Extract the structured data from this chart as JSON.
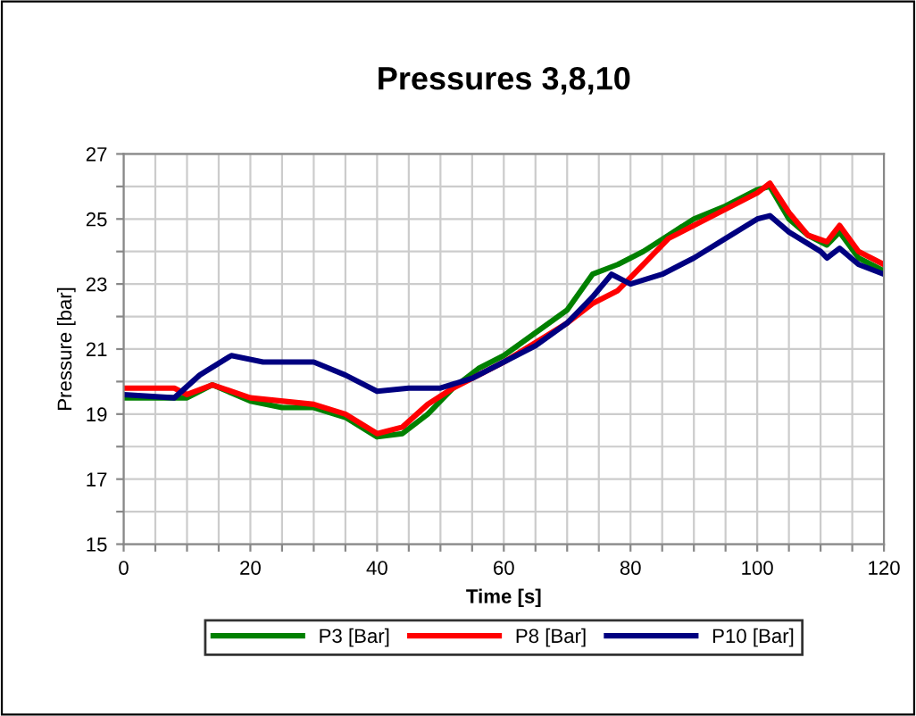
{
  "chart_data": {
    "type": "line",
    "title": "Pressures 3,8,10",
    "xlabel": "Time [s]",
    "ylabel": "Pressure [bar]",
    "xlim": [
      0,
      120
    ],
    "ylim": [
      15,
      27
    ],
    "xticks": [
      0,
      {
        "value": 5,
        "label": null
      },
      {
        "value": 10,
        "label": null
      },
      {
        "value": 15,
        "label": null
      },
      20,
      {
        "value": 25,
        "label": null
      },
      {
        "value": 30,
        "label": null
      },
      {
        "value": 35,
        "label": null
      },
      40,
      {
        "value": 45,
        "label": null
      },
      {
        "value": 50,
        "label": null
      },
      {
        "value": 55,
        "label": null
      },
      60,
      {
        "value": 65,
        "label": null
      },
      {
        "value": 70,
        "label": null
      },
      {
        "value": 75,
        "label": null
      },
      80,
      {
        "value": 85,
        "label": null
      },
      {
        "value": 90,
        "label": null
      },
      {
        "value": 95,
        "label": null
      },
      100,
      {
        "value": 105,
        "label": null
      },
      {
        "value": 110,
        "label": null
      },
      {
        "value": 115,
        "label": null
      },
      120
    ],
    "yticks": [
      15,
      {
        "value": 16,
        "label": null
      },
      17,
      {
        "value": 18,
        "label": null
      },
      19,
      {
        "value": 20,
        "label": null
      },
      21,
      {
        "value": 22,
        "label": null
      },
      23,
      {
        "value": 24,
        "label": null
      },
      25,
      {
        "value": 26,
        "label": null
      },
      27
    ],
    "grid": true,
    "legend": "bottom",
    "marker": "none",
    "line_style": "solid",
    "series": [
      {
        "name": "P3 [Bar]",
        "color": "#008000",
        "x": [
          0,
          8,
          10,
          14,
          20,
          25,
          30,
          35,
          40,
          44,
          48,
          52,
          56,
          60,
          65,
          70,
          74,
          78,
          82,
          86,
          90,
          95,
          100,
          102,
          105,
          108,
          111,
          113,
          116,
          120
        ],
        "values": [
          19.5,
          19.5,
          19.5,
          19.9,
          19.4,
          19.2,
          19.2,
          18.9,
          18.3,
          18.4,
          19.0,
          19.8,
          20.4,
          20.8,
          21.5,
          22.2,
          23.3,
          23.6,
          24.0,
          24.5,
          25.0,
          25.4,
          25.9,
          26.0,
          25.0,
          24.5,
          24.2,
          24.6,
          23.8,
          23.4
        ]
      },
      {
        "name": "P8 [Bar]",
        "color": "#ff0000",
        "x": [
          0,
          8,
          10,
          14,
          20,
          30,
          35,
          40,
          44,
          48,
          52,
          60,
          70,
          74,
          78,
          82,
          86,
          90,
          95,
          100,
          102,
          105,
          108,
          111,
          113,
          116,
          120
        ],
        "values": [
          19.8,
          19.8,
          19.6,
          19.9,
          19.5,
          19.3,
          19.0,
          18.4,
          18.6,
          19.3,
          19.8,
          20.6,
          21.8,
          22.4,
          22.8,
          23.6,
          24.4,
          24.8,
          25.3,
          25.8,
          26.1,
          25.2,
          24.5,
          24.3,
          24.8,
          24.0,
          23.6
        ]
      },
      {
        "name": "P10 [Bar]",
        "color": "#000080",
        "x": [
          0,
          8,
          12,
          17,
          22,
          30,
          35,
          40,
          45,
          50,
          55,
          60,
          65,
          70,
          74,
          77,
          80,
          85,
          90,
          95,
          100,
          102,
          105,
          110,
          111,
          113,
          116,
          120
        ],
        "values": [
          19.6,
          19.5,
          20.2,
          20.8,
          20.6,
          20.6,
          20.2,
          19.7,
          19.8,
          19.8,
          20.1,
          20.6,
          21.1,
          21.8,
          22.6,
          23.3,
          23.0,
          23.3,
          23.8,
          24.4,
          25.0,
          25.1,
          24.6,
          24.0,
          23.8,
          24.1,
          23.6,
          23.3
        ]
      }
    ]
  }
}
